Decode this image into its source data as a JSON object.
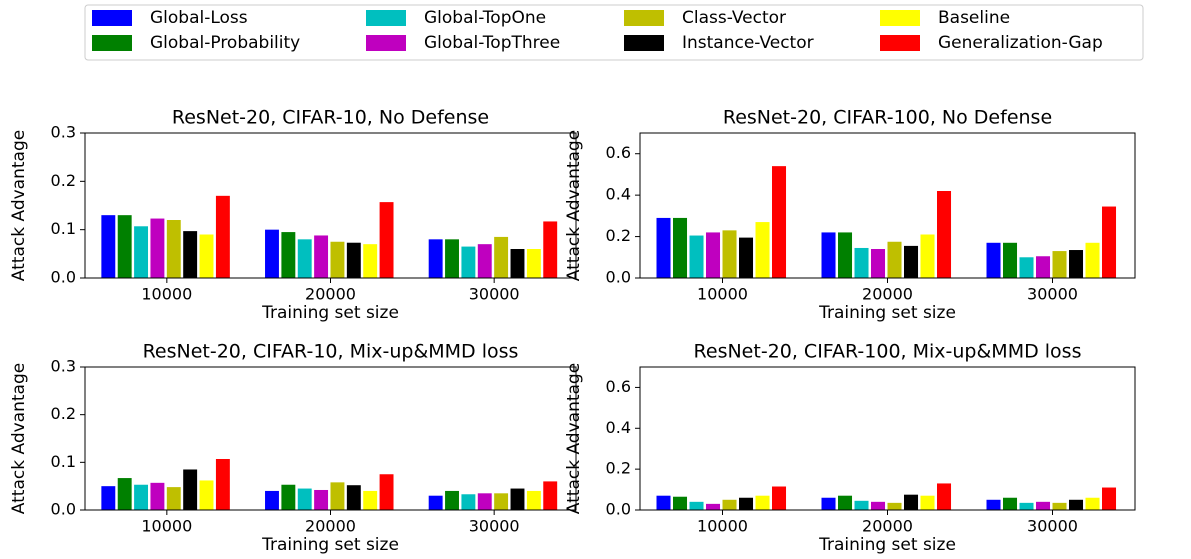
{
  "legend": {
    "entries": [
      {
        "name": "Global-Loss",
        "color": "#0000ff"
      },
      {
        "name": "Global-Probability",
        "color": "#008000"
      },
      {
        "name": "Global-TopOne",
        "color": "#00bfbf"
      },
      {
        "name": "Global-TopThree",
        "color": "#bf00bf"
      },
      {
        "name": "Class-Vector",
        "color": "#bfbf00"
      },
      {
        "name": "Instance-Vector",
        "color": "#000000"
      },
      {
        "name": "Baseline",
        "color": "#ffff00"
      },
      {
        "name": "Generalization-Gap",
        "color": "#ff0000"
      }
    ]
  },
  "chart_data": [
    {
      "type": "bar",
      "title": "ResNet-20, CIFAR-10, No Defense",
      "x_label": "Training set size",
      "y_label": "Attack Advantage",
      "categories": [
        "10000",
        "20000",
        "30000"
      ],
      "ylim": [
        0,
        0.3
      ],
      "yticks": [
        {
          "value": 0,
          "label": "0.0"
        },
        0.1,
        0.2,
        0.3
      ],
      "series": [
        {
          "values": [
            0.13,
            0.1,
            0.08
          ]
        },
        {
          "values": [
            0.13,
            0.095,
            0.08
          ]
        },
        {
          "values": [
            0.107,
            0.08,
            0.065
          ]
        },
        {
          "values": [
            0.123,
            0.088,
            0.07
          ]
        },
        {
          "values": [
            0.12,
            0.075,
            0.085
          ]
        },
        {
          "values": [
            0.097,
            0.073,
            0.06
          ]
        },
        {
          "values": [
            0.09,
            0.07,
            0.06
          ]
        },
        {
          "values": [
            0.17,
            0.157,
            0.117
          ]
        }
      ]
    },
    {
      "type": "bar",
      "title": "ResNet-20, CIFAR-100, No Defense",
      "x_label": "Training set size",
      "y_label": "Attack Advantage",
      "categories": [
        "10000",
        "20000",
        "30000"
      ],
      "ylim": [
        0,
        0.7
      ],
      "yticks": [
        {
          "value": 0,
          "label": "0.0"
        },
        0.2,
        0.4,
        0.6
      ],
      "series": [
        {
          "values": [
            0.29,
            0.22,
            0.17
          ]
        },
        {
          "values": [
            0.29,
            0.22,
            0.17
          ]
        },
        {
          "values": [
            0.205,
            0.145,
            0.1
          ]
        },
        {
          "values": [
            0.22,
            0.14,
            0.105
          ]
        },
        {
          "values": [
            0.23,
            0.175,
            0.13
          ]
        },
        {
          "values": [
            0.195,
            0.155,
            0.135
          ]
        },
        {
          "values": [
            0.27,
            0.21,
            0.17
          ]
        },
        {
          "values": [
            0.54,
            0.42,
            0.345
          ]
        }
      ]
    },
    {
      "type": "bar",
      "title": "ResNet-20, CIFAR-10, Mix-up&MMD loss",
      "x_label": "Training set size",
      "y_label": "Attack Advantage",
      "categories": [
        "10000",
        "20000",
        "30000"
      ],
      "ylim": [
        0,
        0.3
      ],
      "yticks": [
        {
          "value": 0,
          "label": "0.0"
        },
        0.1,
        0.2,
        0.3
      ],
      "series": [
        {
          "values": [
            0.05,
            0.04,
            0.03
          ]
        },
        {
          "values": [
            0.067,
            0.053,
            0.04
          ]
        },
        {
          "values": [
            0.053,
            0.045,
            0.033
          ]
        },
        {
          "values": [
            0.057,
            0.042,
            0.035
          ]
        },
        {
          "values": [
            0.048,
            0.058,
            0.035
          ]
        },
        {
          "values": [
            0.085,
            0.052,
            0.045
          ]
        },
        {
          "values": [
            0.062,
            0.04,
            0.04
          ]
        },
        {
          "values": [
            0.107,
            0.075,
            0.06
          ]
        }
      ]
    },
    {
      "type": "bar",
      "title": "ResNet-20, CIFAR-100, Mix-up&MMD loss",
      "x_label": "Training set size",
      "y_label": "Attack Advantage",
      "categories": [
        "10000",
        "20000",
        "30000"
      ],
      "ylim": [
        0,
        0.7
      ],
      "yticks": [
        {
          "value": 0,
          "label": "0.0"
        },
        0.2,
        0.4,
        0.6
      ],
      "series": [
        {
          "values": [
            0.07,
            0.06,
            0.05
          ]
        },
        {
          "values": [
            0.065,
            0.07,
            0.06
          ]
        },
        {
          "values": [
            0.04,
            0.045,
            0.035
          ]
        },
        {
          "values": [
            0.03,
            0.04,
            0.04
          ]
        },
        {
          "values": [
            0.05,
            0.035,
            0.035
          ]
        },
        {
          "values": [
            0.06,
            0.075,
            0.05
          ]
        },
        {
          "values": [
            0.07,
            0.07,
            0.06
          ]
        },
        {
          "values": [
            0.115,
            0.13,
            0.11
          ]
        }
      ]
    }
  ]
}
